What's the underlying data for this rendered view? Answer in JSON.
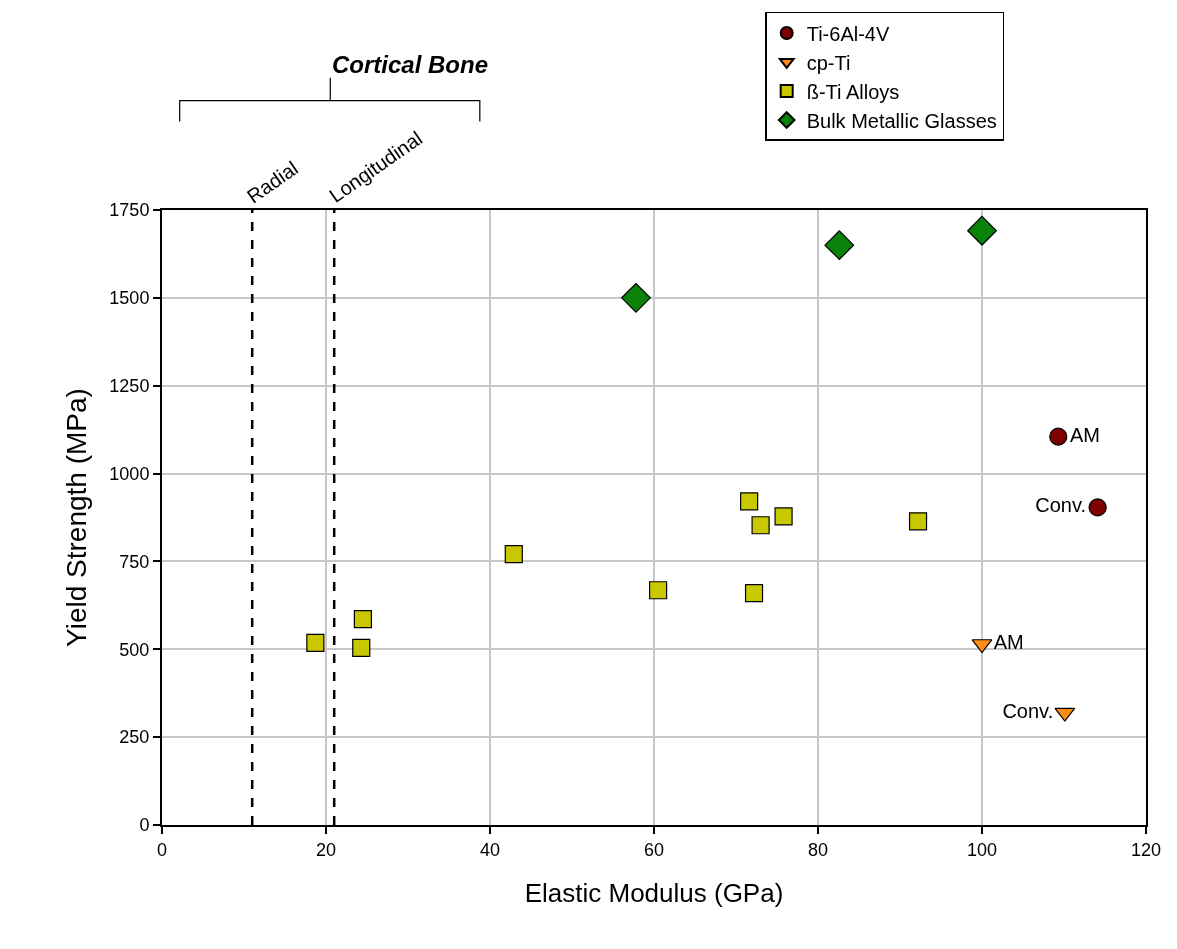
{
  "chart_data": {
    "type": "scatter",
    "xlabel": "Elastic Modulus (GPa)",
    "ylabel": "Yield Strength (MPa)",
    "series": [
      {
        "name": "Ti-6Al-4V",
        "color": "#7f0000",
        "marker": "circle",
        "x": [
          109.3,
          114.1
        ],
        "values": [
          1105,
          904
        ],
        "value_labels": [
          "AM",
          "Conv."
        ]
      },
      {
        "name": "cp-Ti",
        "color": "#ff8c1a",
        "marker": "triangle",
        "x": [
          100,
          110.1
        ],
        "values": [
          515,
          320
        ],
        "value_labels": [
          "AM",
          "Conv."
        ]
      },
      {
        "name": "ß-Ti Alloys",
        "color": "#c8c800",
        "marker": "square",
        "x": [
          18.7,
          24.5,
          24.3,
          42.9,
          60.5,
          72.2,
          71.6,
          73.0,
          75.8,
          92.2
        ],
        "values": [
          518,
          586,
          504,
          771,
          668,
          660,
          921,
          853,
          878,
          864
        ]
      },
      {
        "name": "Bulk Metallic Glasses",
        "color": "#0a820a",
        "marker": "diamond",
        "x": [
          57.8,
          82.6,
          100
        ],
        "values": [
          1500,
          1650,
          1691
        ]
      }
    ],
    "ref_lines": [
      {
        "axis": "x",
        "value": 11,
        "label": "Radial",
        "line_style": "dashed"
      },
      {
        "axis": "x",
        "value": 21,
        "label": "Longitudinal",
        "line_style": "dashed"
      }
    ],
    "annotations": [
      "Cortical Bone"
    ],
    "xlim": [
      0,
      120
    ],
    "xticks": [
      0,
      20,
      40,
      60,
      80,
      100,
      120
    ],
    "ylim": [
      0,
      1750
    ],
    "yticks": [
      0,
      250,
      500,
      750,
      1000,
      1250,
      1500,
      1750
    ],
    "grid": true,
    "legend": "top right"
  }
}
